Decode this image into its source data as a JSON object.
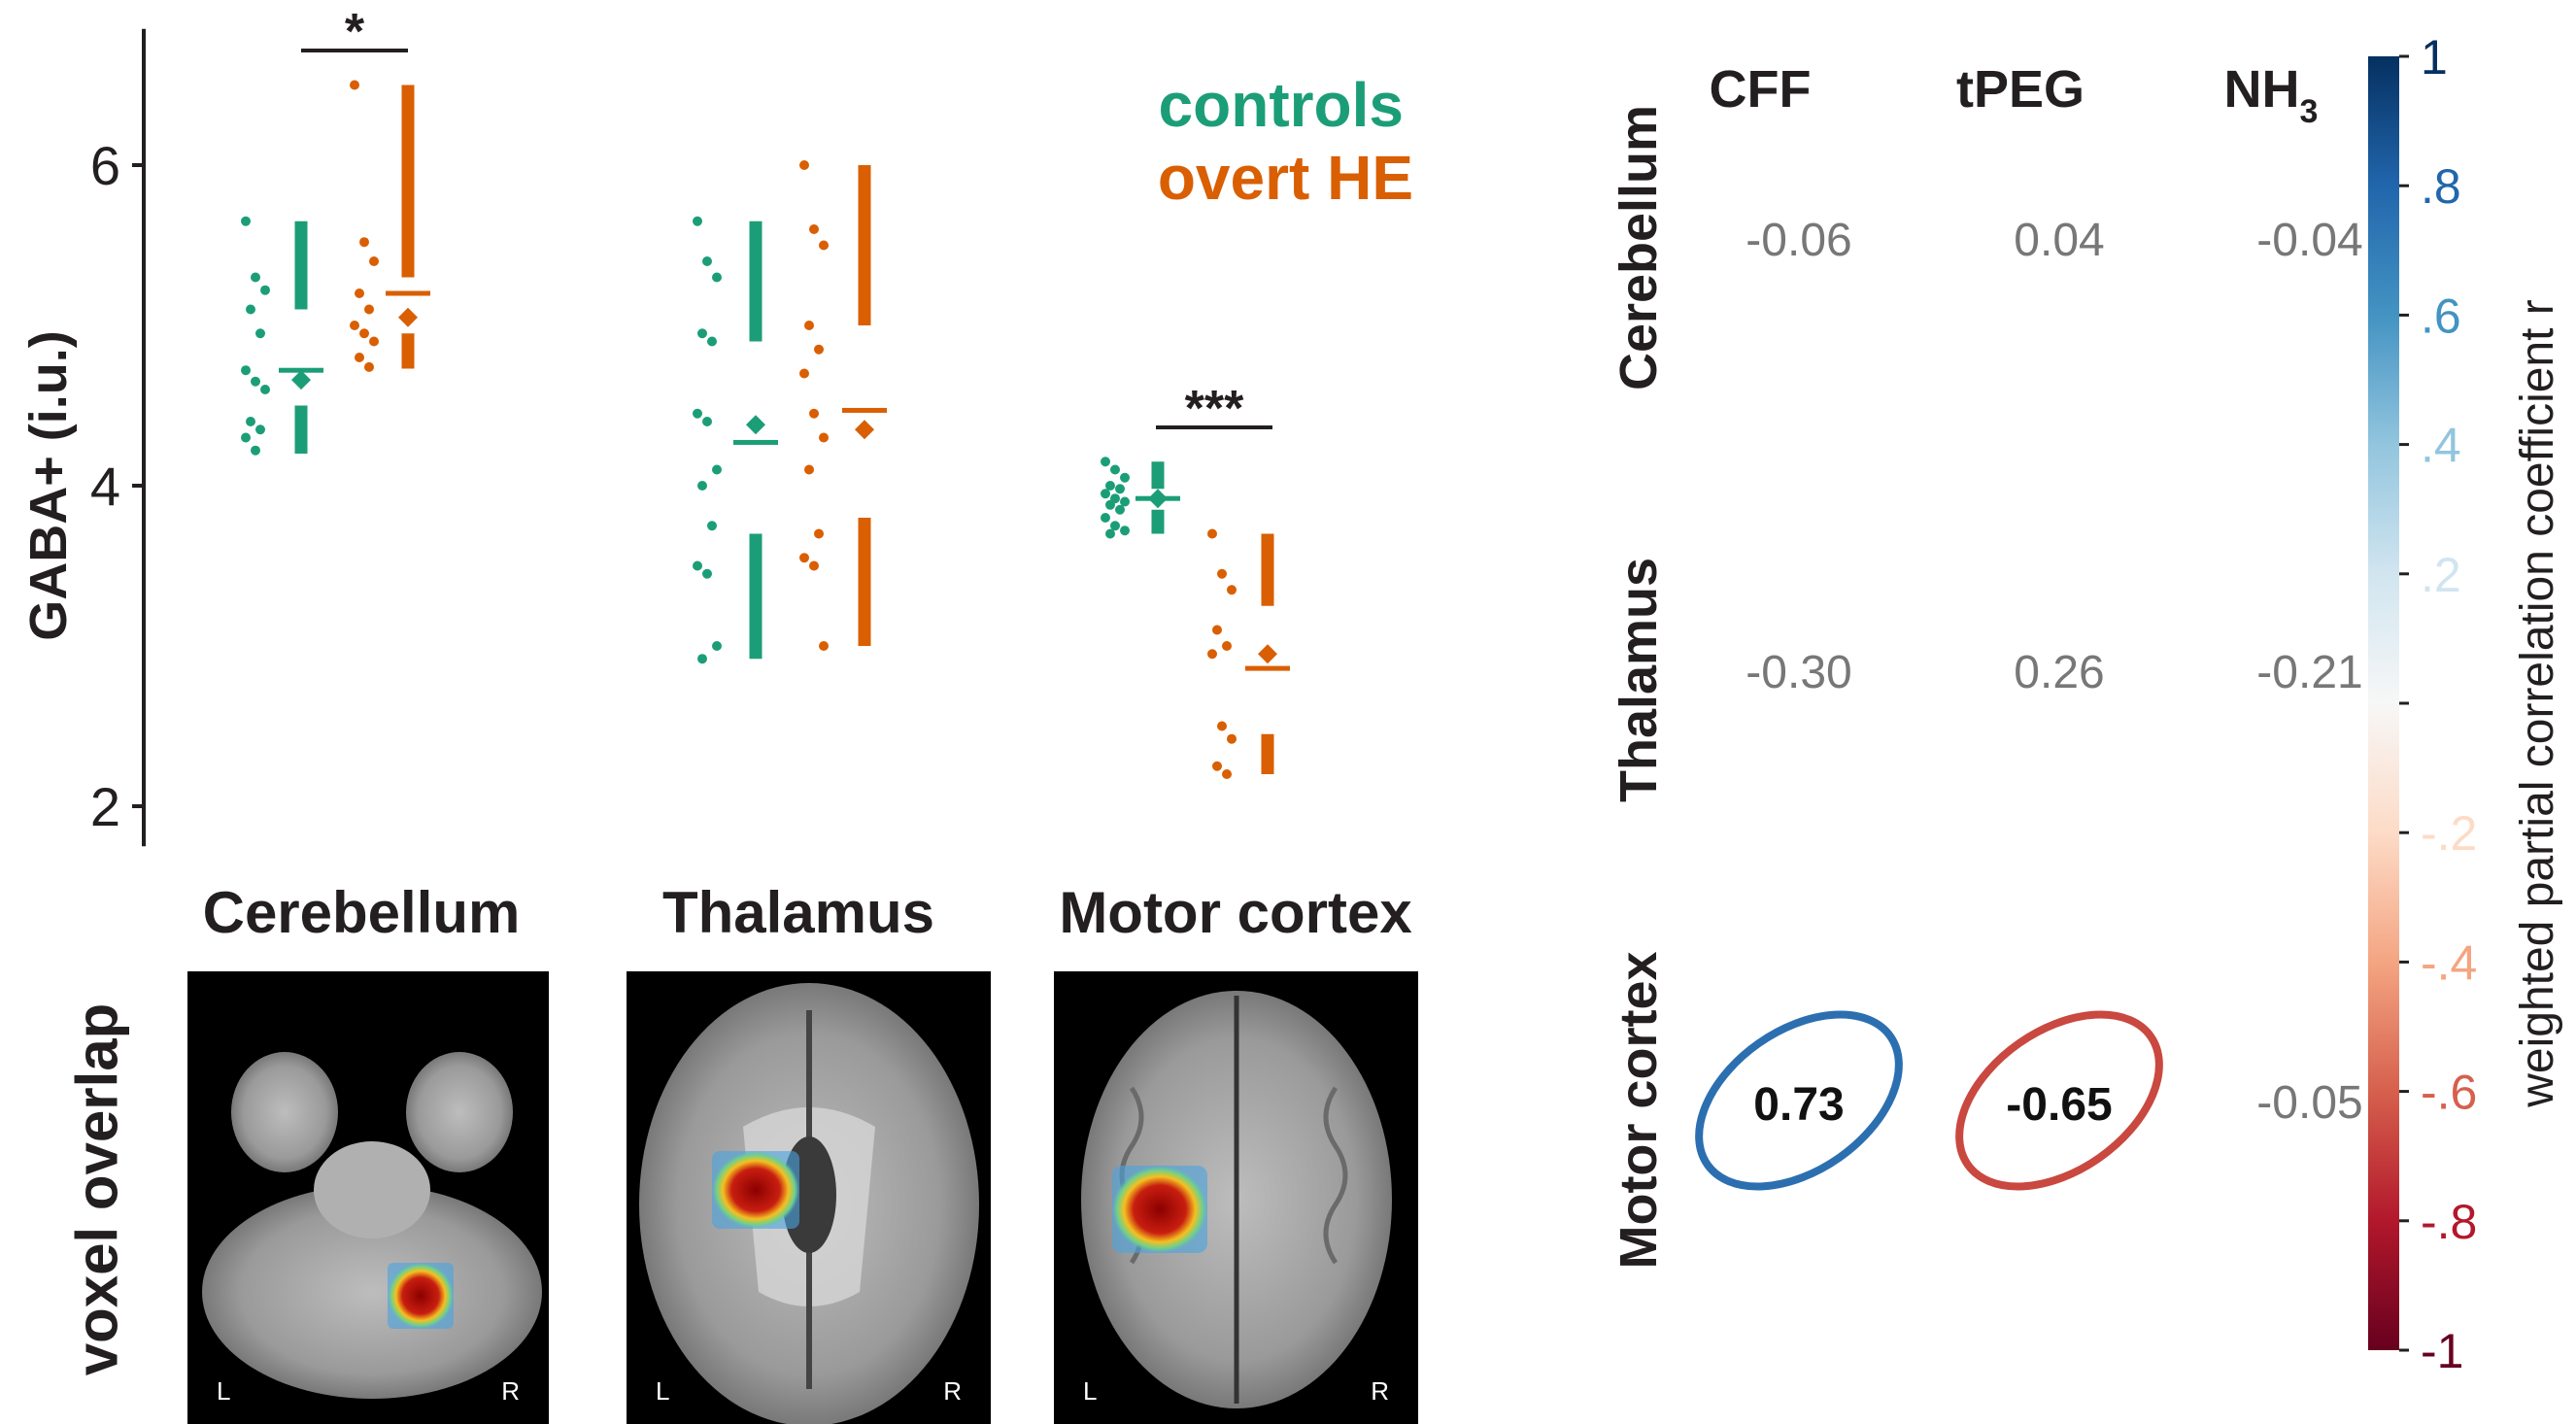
{
  "chart_data": [
    {
      "type": "scatter",
      "ylabel": "GABA+  (i.u.)",
      "ylim": [
        1.75,
        6.85
      ],
      "yticks": [
        2,
        4,
        6
      ],
      "legend": {
        "placement": "top-right",
        "entries": [
          {
            "name": "controls",
            "color": "#1b9e77"
          },
          {
            "name": "overt HE",
            "color": "#d95f02"
          }
        ]
      },
      "categories": [
        "Cerebellum",
        "Thalamus",
        "Motor cortex"
      ],
      "groups": [
        {
          "region": "Cerebellum",
          "significance": "*",
          "controls": {
            "points": [
              5.65,
              5.3,
              5.22,
              5.1,
              4.95,
              4.72,
              4.65,
              4.6,
              4.4,
              4.35,
              4.3,
              4.22
            ],
            "mean": 4.66,
            "median": 4.72,
            "whisker_upper": [
              5.1,
              5.65
            ],
            "whisker_lower": [
              4.2,
              4.5
            ]
          },
          "overt_he": {
            "points": [
              6.5,
              5.52,
              5.4,
              5.2,
              5.1,
              5.0,
              4.95,
              4.9,
              4.8,
              4.74
            ],
            "mean": 5.05,
            "median": 5.2,
            "whisker_upper": [
              5.3,
              6.5
            ],
            "whisker_lower": [
              4.73,
              4.95
            ]
          }
        },
        {
          "region": "Thalamus",
          "significance": "",
          "controls": {
            "points": [
              5.65,
              5.4,
              5.3,
              4.95,
              4.9,
              4.45,
              4.4,
              4.1,
              4.0,
              3.75,
              3.5,
              3.45,
              3.0,
              2.92
            ],
            "mean": 4.38,
            "median": 4.27,
            "whisker_upper": [
              4.9,
              5.65
            ],
            "whisker_lower": [
              2.92,
              3.7
            ]
          },
          "overt_he": {
            "points": [
              6.0,
              5.6,
              5.5,
              5.0,
              4.85,
              4.7,
              4.45,
              4.3,
              4.1,
              3.7,
              3.55,
              3.5,
              3.0
            ],
            "mean": 4.35,
            "median": 4.47,
            "whisker_upper": [
              5.0,
              6.0
            ],
            "whisker_lower": [
              3.0,
              3.8
            ]
          }
        },
        {
          "region": "Motor cortex",
          "significance": "***",
          "controls": {
            "points": [
              4.15,
              4.1,
              4.05,
              4.0,
              3.98,
              3.95,
              3.92,
              3.9,
              3.88,
              3.85,
              3.8,
              3.75,
              3.72,
              3.7
            ],
            "mean": 3.92,
            "median": 3.92,
            "whisker_upper": [
              3.98,
              4.15
            ],
            "whisker_lower": [
              3.7,
              3.85
            ]
          },
          "overt_he": {
            "points": [
              3.7,
              3.45,
              3.35,
              3.1,
              3.0,
              2.95,
              2.5,
              2.42,
              2.25,
              2.2
            ],
            "mean": 2.95,
            "median": 2.86,
            "whisker_upper": [
              3.25,
              3.7
            ],
            "whisker_lower": [
              2.2,
              2.45
            ]
          }
        }
      ]
    },
    {
      "type": "heatmap",
      "columns": [
        "CFF",
        "tPEG",
        "NH"
      ],
      "column_subscript": {
        "NH": "3"
      },
      "rows": [
        "Cerebellum",
        "Thalamus",
        "Motor cortex"
      ],
      "values": [
        [
          "-0.06",
          "0.04",
          "-0.04"
        ],
        [
          "-0.30",
          "0.26",
          "-0.21"
        ],
        [
          "0.73",
          "-0.65",
          "-0.05"
        ]
      ],
      "highlighted": [
        {
          "row": 2,
          "col": 0,
          "color": "#2c6fb0"
        },
        {
          "row": 2,
          "col": 1,
          "color": "#c94840"
        }
      ],
      "colorbar": {
        "label": "weighted partial correlation coefficient r",
        "range": [
          -1,
          1
        ],
        "tick_labels": [
          "1",
          ".8",
          ".6",
          ".4",
          ".2",
          "-.2",
          "-.4",
          "-.6",
          "-.8",
          "-1"
        ],
        "tick_values": [
          1,
          0.8,
          0.6,
          0.4,
          0.2,
          -0.2,
          -0.4,
          -0.6,
          -0.8,
          -1
        ],
        "colors": [
          "#053061",
          "#2166ac",
          "#4393c3",
          "#92c5de",
          "#d1e5f0",
          "#f7f7f7",
          "#fddbc7",
          "#f4a582",
          "#d6604d",
          "#b2182b",
          "#67001f"
        ]
      }
    }
  ],
  "voxel_panels": {
    "side_label": "voxel overlap",
    "titles": [
      "Cerebellum",
      "Thalamus",
      "Motor cortex"
    ],
    "left_marker": "L",
    "right_marker": "R"
  }
}
